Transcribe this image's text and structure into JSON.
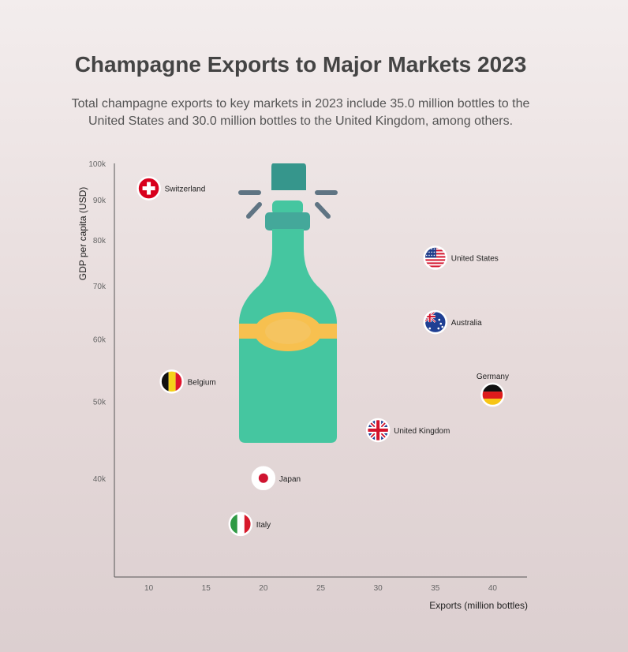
{
  "title": "Champagne Exports to Major Markets 2023",
  "subtitle": "Total champagne exports to key markets in 2023 include 35.0 million bottles to the United States and 30.0 million bottles to the United Kingdom, among others.",
  "chart_data": {
    "type": "scatter",
    "xlabel": "Exports (million bottles)",
    "ylabel": "GDP per capita (USD)",
    "xlim": [
      7,
      43
    ],
    "ylim": [
      30000,
      100000
    ],
    "yscale": "log",
    "xticks": [
      10,
      15,
      20,
      25,
      30,
      35,
      40
    ],
    "yticks": [
      {
        "value": 40000,
        "label": "40k"
      },
      {
        "value": 50000,
        "label": "50k"
      },
      {
        "value": 60000,
        "label": "60k"
      },
      {
        "value": 70000,
        "label": "70k"
      },
      {
        "value": 80000,
        "label": "80k"
      },
      {
        "value": 90000,
        "label": "90k"
      },
      {
        "value": 100000,
        "label": "100k"
      }
    ],
    "grid": false,
    "points": [
      {
        "name": "Switzerland",
        "x": 10,
        "y": 93000,
        "flag": "switzerland-flag",
        "label_pos": "right"
      },
      {
        "name": "United States",
        "x": 35,
        "y": 76000,
        "flag": "united-states-flag",
        "label_pos": "right"
      },
      {
        "name": "Australia",
        "x": 35,
        "y": 63000,
        "flag": "australia-flag",
        "label_pos": "right"
      },
      {
        "name": "Belgium",
        "x": 12,
        "y": 53000,
        "flag": "belgium-flag",
        "label_pos": "right"
      },
      {
        "name": "Germany",
        "x": 40,
        "y": 51000,
        "flag": "germany-flag",
        "label_pos": "top"
      },
      {
        "name": "United Kingdom",
        "x": 30,
        "y": 46000,
        "flag": "united-kingdom-flag",
        "label_pos": "right"
      },
      {
        "name": "Japan",
        "x": 20,
        "y": 40000,
        "flag": "japan-flag",
        "label_pos": "right"
      },
      {
        "name": "Italy",
        "x": 18,
        "y": 35000,
        "flag": "italy-flag",
        "label_pos": "right"
      }
    ],
    "decoration": "champagne-bottle-icon",
    "colors": {
      "bottle": "#45c6a0",
      "bottle_cap": "#36968c",
      "bottle_neck_ring": "#44a89a",
      "label_band": "#f7c04f",
      "spark": "#5f7483",
      "axis": "#555555"
    }
  }
}
